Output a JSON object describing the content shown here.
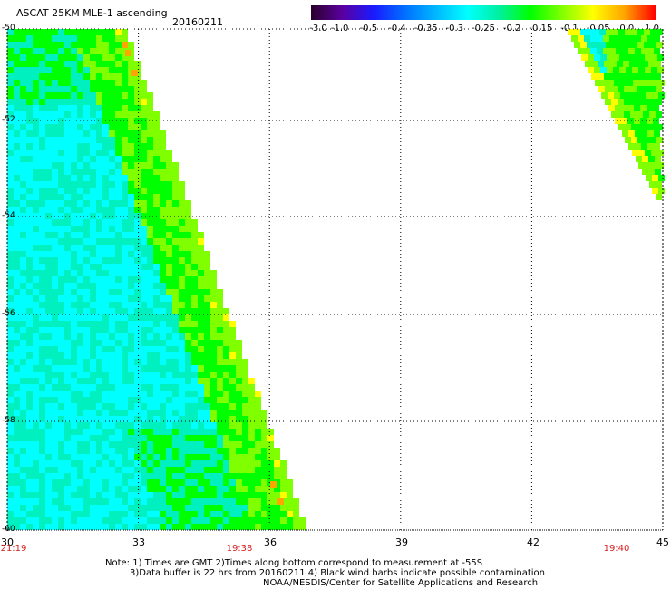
{
  "header": {
    "title": "ASCAT 25KM MLE-1 ascending",
    "date": "20160211"
  },
  "colorbar": {
    "labels": [
      "-3.0",
      "-1.0",
      "-0.5",
      "-0.4",
      "-0.35",
      "-0.3",
      "-0.25",
      "-0.2",
      "-0.15",
      "-0.1",
      "-0.05",
      "0.0",
      "1.0"
    ],
    "colors": [
      "#2a002a",
      "#5a00a0",
      "#1a1aff",
      "#0070ff",
      "#00b8ff",
      "#00ffff",
      "#00f0a0",
      "#00ff00",
      "#7fff00",
      "#ffff00",
      "#ffa500",
      "#ff0000"
    ]
  },
  "map": {
    "lon_ticks": [
      "30",
      "33",
      "36",
      "39",
      "42",
      "45"
    ],
    "lat_ticks": [
      "-50",
      "-52",
      "-54",
      "-56",
      "-58",
      "-60"
    ],
    "lon_range": [
      30,
      45
    ],
    "lat_range": [
      -50,
      -60
    ],
    "time_labels": [
      {
        "text": "21:19",
        "lon": 30.15
      },
      {
        "text": "19:38",
        "lon": 35.3
      },
      {
        "text": "19:40",
        "lon": 44.0
      }
    ],
    "swath_colors": {
      "cyan": "#00ffff",
      "aqua": "#00f0c0",
      "green": "#00ff00",
      "lime": "#7fff00",
      "yellow": "#ffff00",
      "orange": "#ffa500"
    }
  },
  "notes": {
    "line1": "Note: 1) Times are GMT 2)Times along bottom correspond to measurement at -55S",
    "line2": "3)Data buffer is 22 hrs from 20160211 4) Black wind barbs indicate possible contamination",
    "line3": "NOAA/NESDIS/Center for Satellite Applications and Research"
  }
}
